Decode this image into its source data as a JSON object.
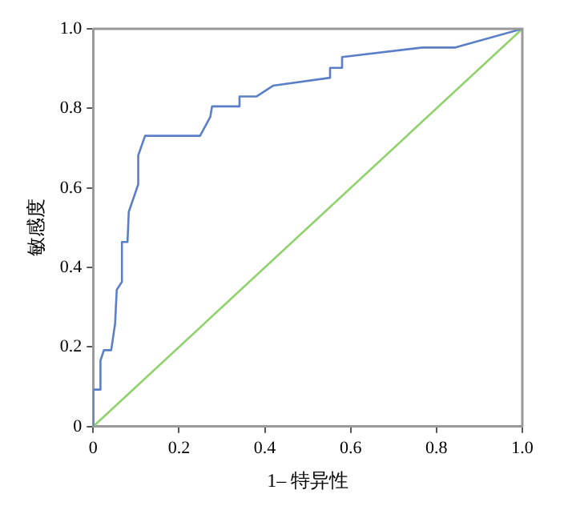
{
  "chart_data": {
    "type": "line",
    "xlabel": "1– 特异性",
    "ylabel": "敏感度",
    "xlim": [
      0,
      1
    ],
    "ylim": [
      0,
      1
    ],
    "xticks": [
      0,
      0.2,
      0.4,
      0.6,
      0.8,
      {
        "value": 1,
        "label": "1.0"
      }
    ],
    "yticks": [
      0,
      0.2,
      0.4,
      0.6,
      0.8,
      {
        "value": 1,
        "label": "1.0"
      }
    ],
    "grid": false,
    "legend": false,
    "marker": "none",
    "line_style": "solid",
    "series": [
      {
        "color": "#5b7fc7",
        "x": [
          0,
          0,
          0.017,
          0.017,
          0.025,
          0.042,
          0.051,
          0.055,
          0.067,
          0.067,
          0.08,
          0.083,
          0.105,
          0.105,
          0.121,
          0.249,
          0.273,
          0.277,
          0.341,
          0.341,
          0.381,
          0.419,
          0.552,
          0.552,
          0.58,
          0.58,
          0.767,
          0.844,
          1
        ],
        "values": [
          0,
          0.093,
          0.093,
          0.166,
          0.192,
          0.192,
          0.258,
          0.344,
          0.364,
          0.464,
          0.464,
          0.54,
          0.609,
          0.682,
          0.731,
          0.731,
          0.779,
          0.805,
          0.805,
          0.83,
          0.83,
          0.857,
          0.877,
          0.902,
          0.902,
          0.929,
          0.953,
          0.953,
          1
        ]
      },
      {
        "color": "#8fd16a",
        "x": [
          0,
          1
        ],
        "values": [
          0,
          1
        ]
      }
    ]
  }
}
